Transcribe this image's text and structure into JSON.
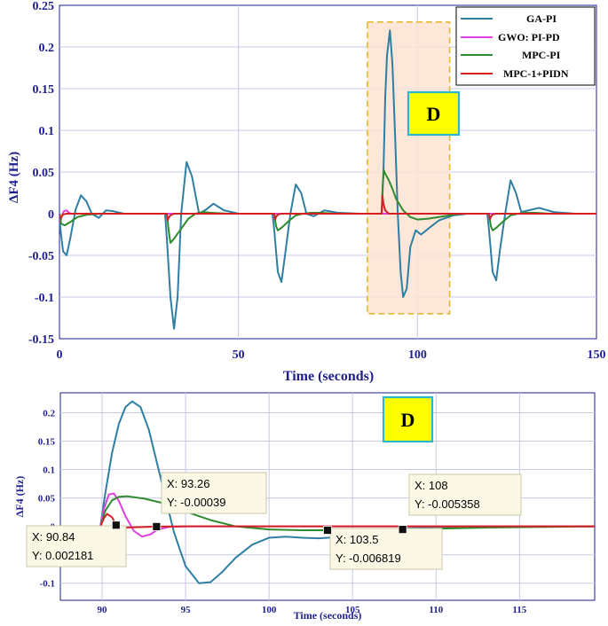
{
  "chart_data": [
    {
      "type": "line",
      "ylabel": "ΔF4 (Hz)",
      "xlabel": "Time (seconds)",
      "xlim": [
        0,
        150
      ],
      "ylim": [
        -0.15,
        0.25
      ],
      "xticks": [
        "0",
        "50",
        "100",
        "150"
      ],
      "yticks": [
        "0.25",
        "0.2",
        "0.15",
        "0.1",
        "0.05",
        "0",
        "-0.05",
        "-0.1",
        "-0.15"
      ],
      "grid": true,
      "legend_position": "top-right",
      "legend": [
        "GA-PI",
        "GWO: PI-PD",
        "MPC-PI",
        "MPC-1+PIDN"
      ],
      "annotation_box": "D",
      "highlight_region": {
        "x": [
          86,
          109
        ],
        "y": [
          -0.12,
          0.23
        ]
      },
      "series": [
        {
          "name": "GA-PI",
          "color": "#2f7fa3",
          "x": [
            0,
            0.3,
            1,
            2,
            3,
            4.5,
            6,
            7.5,
            9,
            11,
            13,
            15,
            18,
            22,
            26,
            29.5,
            30,
            31,
            32,
            33,
            34,
            35.5,
            37,
            39,
            41,
            43,
            46,
            50,
            55,
            59.5,
            60,
            61,
            62,
            63,
            64.5,
            66,
            67.5,
            69,
            71,
            74,
            78,
            84,
            89.5,
            90,
            90.5,
            91,
            91.5,
            92.3,
            93,
            93.7,
            94.5,
            95.3,
            96,
            97,
            98,
            99.5,
            101,
            103,
            106,
            110,
            114,
            119.5,
            120,
            121,
            122,
            123,
            124.5,
            126,
            127.5,
            129,
            131,
            134,
            138,
            144,
            150
          ],
          "y": [
            0,
            -0.02,
            -0.045,
            -0.05,
            -0.03,
            0.005,
            0.022,
            0.015,
            0.0,
            -0.005,
            0.004,
            0.003,
            0.0,
            0.0,
            0.0,
            0.0,
            -0.03,
            -0.1,
            -0.138,
            -0.1,
            0.0,
            0.062,
            0.045,
            0.0,
            0.005,
            0.012,
            0.004,
            0.0,
            0.0,
            0.0,
            -0.02,
            -0.07,
            -0.082,
            -0.05,
            0.0,
            0.035,
            0.025,
            0.0,
            -0.003,
            0.004,
            0.001,
            0.0,
            0.0,
            0.0,
            0.05,
            0.14,
            0.19,
            0.22,
            0.18,
            0.1,
            0.0,
            -0.07,
            -0.1,
            -0.09,
            -0.04,
            -0.02,
            -0.025,
            -0.018,
            -0.008,
            -0.002,
            0.0,
            0.0,
            -0.02,
            -0.07,
            -0.08,
            -0.045,
            0.0,
            0.04,
            0.025,
            0.002,
            0.004,
            0.007,
            0.002,
            0.0,
            0.0
          ]
        },
        {
          "name": "GWO: PI-PD",
          "color": "#e040e0",
          "x": [
            0,
            0.2,
            0.6,
            1.2,
            2,
            3,
            5,
            150
          ],
          "y": [
            0,
            -0.01,
            -0.004,
            0.003,
            0.004,
            0.0,
            0.0,
            0.0
          ]
        },
        {
          "name": "MPC-PI",
          "color": "#2e8b2e",
          "x": [
            0,
            0.5,
            1.5,
            3,
            5,
            8,
            12,
            30,
            30.5,
            31,
            32,
            34,
            36,
            38,
            40,
            43,
            47,
            60,
            60.5,
            61,
            62,
            64,
            66,
            68,
            70,
            73,
            77,
            90,
            90.3,
            90.6,
            91,
            92,
            93,
            94,
            96,
            98,
            100,
            103,
            106,
            109,
            112,
            120,
            120.5,
            121,
            122,
            124,
            126,
            128,
            130,
            133,
            137,
            150
          ],
          "y": [
            0,
            -0.012,
            -0.014,
            -0.01,
            -0.004,
            -0.001,
            0.0,
            0.0,
            -0.02,
            -0.035,
            -0.03,
            -0.018,
            -0.006,
            0.0,
            0.002,
            0.001,
            0.0,
            0.0,
            -0.015,
            -0.02,
            -0.017,
            -0.009,
            -0.002,
            0.0,
            0.001,
            0.001,
            0.0,
            0.0,
            0.035,
            0.052,
            0.048,
            0.04,
            0.03,
            0.018,
            0.004,
            -0.004,
            -0.007,
            -0.006,
            -0.004,
            -0.002,
            0.0,
            0.0,
            -0.015,
            -0.02,
            -0.017,
            -0.009,
            -0.002,
            0.0,
            0.001,
            0.001,
            0.0,
            0.0
          ]
        },
        {
          "name": "MPC-1+PIDN",
          "color": "#d42020",
          "x": [
            0,
            0.2,
            0.5,
            1,
            2,
            4,
            30,
            30.2,
            30.5,
            31,
            32,
            34,
            60,
            60.2,
            60.5,
            61,
            62,
            64,
            90,
            90.2,
            90.5,
            91,
            92,
            94,
            120,
            120.2,
            120.5,
            121,
            122,
            124,
            150
          ],
          "y": [
            0,
            -0.006,
            -0.004,
            -0.001,
            0.0,
            0.0,
            0.0,
            -0.008,
            -0.005,
            -0.002,
            0.0,
            0.0,
            0.0,
            -0.007,
            -0.004,
            -0.001,
            0.0,
            0.0,
            0.0,
            0.022,
            0.012,
            0.004,
            0.0,
            0.0,
            0.0,
            -0.007,
            -0.004,
            -0.001,
            0.0,
            0.0,
            0.0
          ]
        }
      ]
    },
    {
      "type": "line",
      "ylabel": "ΔF4 (Hz)",
      "xlabel": "Time (seconds)",
      "xlim": [
        87.5,
        119.5
      ],
      "ylim": [
        -0.13,
        0.235
      ],
      "xticks": [
        "90",
        "95",
        "100",
        "105",
        "110",
        "115"
      ],
      "yticks": [
        "0.2",
        "0.15",
        "0.1",
        "0.05",
        "0",
        "-0.05",
        "-0.1"
      ],
      "grid": true,
      "annotation_box": "D",
      "series": [
        {
          "name": "GA-PI",
          "color": "#2f7fa3",
          "x": [
            87.5,
            89.9,
            90.2,
            90.6,
            91,
            91.4,
            91.8,
            92.3,
            92.8,
            93.3,
            93.8,
            94.3,
            95,
            95.8,
            96.5,
            97.2,
            98,
            99,
            100,
            101,
            102,
            103,
            104,
            105,
            106,
            108,
            110,
            112,
            115,
            119.5
          ],
          "y": [
            0,
            0.0,
            0.06,
            0.13,
            0.18,
            0.21,
            0.22,
            0.21,
            0.17,
            0.11,
            0.05,
            -0.01,
            -0.07,
            -0.1,
            -0.098,
            -0.08,
            -0.055,
            -0.032,
            -0.02,
            -0.018,
            -0.02,
            -0.021,
            -0.019,
            -0.014,
            -0.009,
            -0.004,
            -0.001,
            0.0,
            0.0,
            0.0
          ]
        },
        {
          "name": "GWO: PI-PD",
          "color": "#e040e0",
          "x": [
            87.5,
            89.9,
            90.1,
            90.4,
            90.7,
            91,
            91.4,
            91.9,
            92.4,
            92.9,
            93.3,
            94,
            95,
            119.5
          ],
          "y": [
            0,
            0.0,
            0.03,
            0.056,
            0.058,
            0.045,
            0.018,
            -0.008,
            -0.018,
            -0.014,
            -0.006,
            -0.001,
            0.0,
            0.0
          ]
        },
        {
          "name": "MPC-PI",
          "color": "#2e8b2e",
          "x": [
            87.5,
            89.9,
            90.2,
            90.6,
            91,
            91.5,
            92.5,
            93.5,
            94.5,
            95.5,
            96.5,
            98,
            100,
            102,
            103.5,
            105,
            107,
            108,
            110,
            113,
            119.5
          ],
          "y": [
            0,
            0.0,
            0.028,
            0.046,
            0.052,
            0.053,
            0.049,
            0.042,
            0.032,
            0.021,
            0.011,
            0.0,
            -0.0055,
            -0.0068,
            -0.0068,
            -0.0064,
            -0.0057,
            -0.0054,
            -0.004,
            -0.002,
            0.0
          ]
        },
        {
          "name": "MPC-1+PIDN",
          "color": "#d42020",
          "x": [
            87.5,
            89.9,
            90.1,
            90.3,
            90.6,
            90.84,
            91.3,
            92,
            93.26,
            95,
            119.5
          ],
          "y": [
            0,
            0.0,
            0.014,
            0.022,
            0.016,
            0.0022,
            -0.002,
            -0.0015,
            -0.0004,
            0.0,
            0.0
          ]
        }
      ],
      "datatips": [
        {
          "X": "X: 90.84",
          "Y": "Y: 0.002181",
          "x": 90.84,
          "y": 0.002181
        },
        {
          "X": "X: 93.26",
          "Y": "Y: -0.00039",
          "x": 93.26,
          "y": -0.00039
        },
        {
          "X": "X: 103.5",
          "Y": "Y: -0.006819",
          "x": 103.5,
          "y": -0.006819
        },
        {
          "X": "X: 108",
          "Y": "Y: -0.005358",
          "x": 108,
          "y": -0.005358
        }
      ]
    }
  ]
}
